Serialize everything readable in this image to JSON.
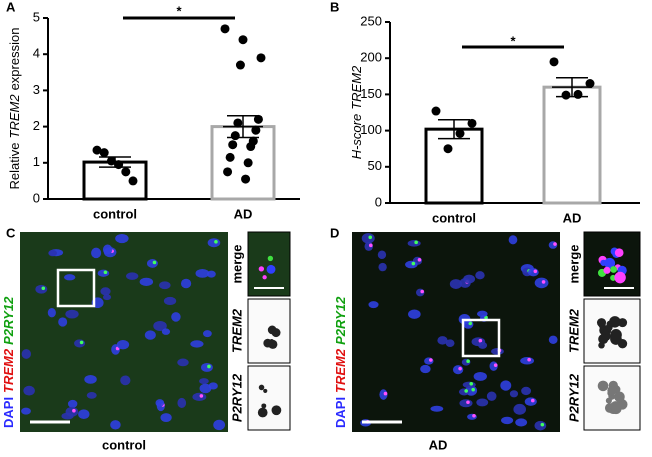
{
  "chart_data": [
    {
      "type": "bar",
      "panel": "A",
      "ylabel": [
        {
          "text": "Relative",
          "italic": false
        },
        {
          "text": "TREM2",
          "italic": true
        },
        {
          "text": "expression",
          "italic": false
        }
      ],
      "categories": [
        "control",
        "AD"
      ],
      "values": [
        1.02,
        2.0
      ],
      "errors": [
        0.14,
        0.3
      ],
      "points": [
        [
          1.35,
          1.28,
          1.05,
          0.95,
          0.75,
          0.5
        ],
        [
          4.7,
          4.4,
          3.9,
          3.7,
          2.2,
          2.1,
          1.9,
          1.75,
          1.6,
          1.5,
          1.45,
          1.15,
          1.0,
          0.75,
          0.55
        ]
      ],
      "colors": [
        "#000000",
        "#a8a8a8"
      ],
      "ylim": [
        0,
        5
      ],
      "yticks": [
        0,
        1,
        2,
        3,
        4,
        5
      ],
      "significance": "*"
    },
    {
      "type": "bar",
      "panel": "B",
      "ylabel": [
        {
          "text": "H-score",
          "italic": true
        },
        {
          "text": "TREM2",
          "italic": true
        }
      ],
      "categories": [
        "control",
        "AD"
      ],
      "values": [
        102,
        160
      ],
      "errors": [
        13,
        13
      ],
      "points": [
        [
          127,
          110,
          96,
          75
        ],
        [
          195,
          165,
          150,
          149
        ]
      ],
      "colors": [
        "#000000",
        "#a8a8a8"
      ],
      "ylim": [
        0,
        250
      ],
      "yticks": [
        0,
        50,
        100,
        150,
        200,
        250
      ],
      "significance": "*"
    }
  ],
  "images": [
    {
      "panel": "C",
      "channels": [
        {
          "text": "DAPI",
          "color": "#2a2aff",
          "italic": false
        },
        {
          "text": "TREM2",
          "color": "#e01010",
          "italic": true
        },
        {
          "text": "P2RY12",
          "color": "#10a010",
          "italic": true
        }
      ],
      "insets": [
        {
          "text": "merge",
          "italic": false
        },
        {
          "text": "TREM2",
          "italic": true
        },
        {
          "text": "P2RY12",
          "italic": true
        }
      ],
      "caption": "control"
    },
    {
      "panel": "D",
      "channels": [
        {
          "text": "DAPI",
          "color": "#2a2aff",
          "italic": false
        },
        {
          "text": "TREM2",
          "color": "#e01010",
          "italic": true
        },
        {
          "text": "P2RY12",
          "color": "#10a010",
          "italic": true
        }
      ],
      "insets": [
        {
          "text": "merge",
          "italic": false
        },
        {
          "text": "TREM2",
          "italic": true
        },
        {
          "text": "P2RY12",
          "italic": true
        }
      ],
      "caption": "AD"
    }
  ]
}
